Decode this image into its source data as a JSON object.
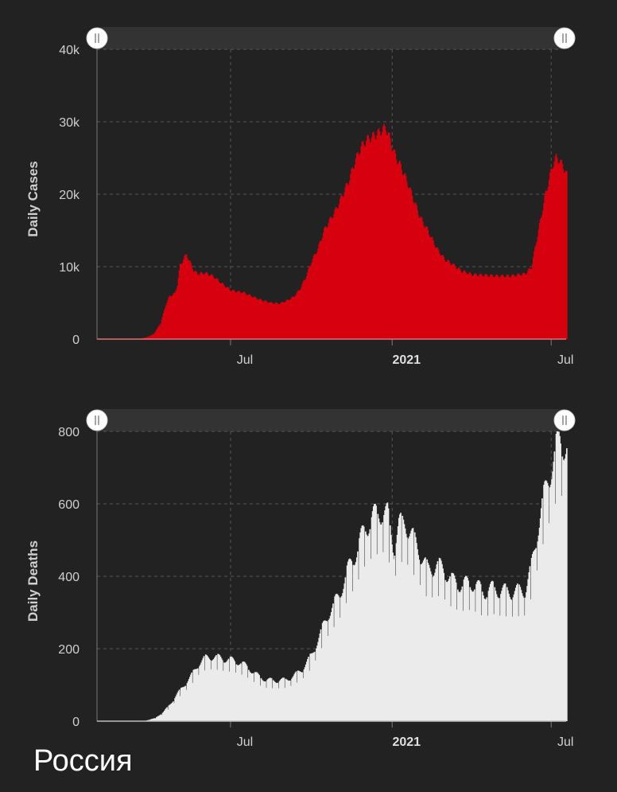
{
  "country": "Россия",
  "chart_data": [
    {
      "id": "cases",
      "type": "bar",
      "ylabel": "Daily Cases",
      "ylim": [
        0,
        40000
      ],
      "yticks": [
        {
          "value": 0,
          "label": "0"
        },
        {
          "value": 10000,
          "label": "10k"
        },
        {
          "value": 20000,
          "label": "20k"
        },
        {
          "value": 30000,
          "label": "30k"
        },
        {
          "value": 40000,
          "label": "40k"
        }
      ],
      "xlim": [
        "2020-01-31",
        "2021-07-18"
      ],
      "xticks": [
        {
          "date": "2020-07-01",
          "label": "Jul",
          "bold": false
        },
        {
          "date": "2021-01-01",
          "label": "2021",
          "bold": true
        },
        {
          "date": "2021-07-01",
          "label": "Jul",
          "bold": false
        }
      ],
      "grid": true,
      "color": "#d6000f",
      "keypoints": [
        [
          "2020-01-31",
          0
        ],
        [
          "2020-03-08",
          10
        ],
        [
          "2020-03-20",
          60
        ],
        [
          "2020-03-28",
          300
        ],
        [
          "2020-04-04",
          700
        ],
        [
          "2020-04-12",
          2200
        ],
        [
          "2020-04-18",
          4800
        ],
        [
          "2020-04-22",
          5900
        ],
        [
          "2020-04-28",
          6300
        ],
        [
          "2020-05-01",
          7500
        ],
        [
          "2020-05-04",
          10200
        ],
        [
          "2020-05-08",
          11000
        ],
        [
          "2020-05-11",
          11700
        ],
        [
          "2020-05-15",
          10600
        ],
        [
          "2020-05-20",
          9300
        ],
        [
          "2020-05-25",
          9000
        ],
        [
          "2020-06-01",
          9100
        ],
        [
          "2020-06-10",
          8700
        ],
        [
          "2020-06-20",
          7700
        ],
        [
          "2020-07-01",
          6700
        ],
        [
          "2020-07-15",
          6400
        ],
        [
          "2020-08-01",
          5500
        ],
        [
          "2020-08-15",
          5000
        ],
        [
          "2020-08-25",
          4900
        ],
        [
          "2020-09-01",
          5200
        ],
        [
          "2020-09-10",
          5800
        ],
        [
          "2020-09-17",
          6800
        ],
        [
          "2020-09-24",
          8500
        ],
        [
          "2020-10-01",
          10800
        ],
        [
          "2020-10-08",
          12500
        ],
        [
          "2020-10-15",
          15000
        ],
        [
          "2020-10-22",
          16500
        ],
        [
          "2020-10-29",
          18000
        ],
        [
          "2020-11-05",
          19900
        ],
        [
          "2020-11-12",
          21800
        ],
        [
          "2020-11-19",
          24500
        ],
        [
          "2020-11-26",
          26500
        ],
        [
          "2020-12-03",
          27500
        ],
        [
          "2020-12-10",
          28000
        ],
        [
          "2020-12-17",
          28500
        ],
        [
          "2020-12-24",
          29200
        ],
        [
          "2020-12-28",
          27800
        ],
        [
          "2021-01-03",
          25500
        ],
        [
          "2021-01-10",
          23800
        ],
        [
          "2021-01-18",
          21500
        ],
        [
          "2021-01-25",
          19100
        ],
        [
          "2021-02-01",
          16800
        ],
        [
          "2021-02-10",
          14900
        ],
        [
          "2021-02-20",
          12500
        ],
        [
          "2021-03-01",
          11000
        ],
        [
          "2021-03-10",
          10300
        ],
        [
          "2021-03-20",
          9400
        ],
        [
          "2021-04-01",
          8900
        ],
        [
          "2021-04-15",
          8800
        ],
        [
          "2021-05-01",
          8700
        ],
        [
          "2021-05-15",
          8700
        ],
        [
          "2021-06-01",
          9000
        ],
        [
          "2021-06-08",
          9900
        ],
        [
          "2021-06-12",
          12500
        ],
        [
          "2021-06-16",
          15000
        ],
        [
          "2021-06-20",
          17500
        ],
        [
          "2021-06-24",
          20000
        ],
        [
          "2021-06-28",
          22000
        ],
        [
          "2021-07-02",
          24000
        ],
        [
          "2021-07-06",
          25000
        ],
        [
          "2021-07-10",
          24500
        ],
        [
          "2021-07-14",
          23800
        ],
        [
          "2021-07-18",
          22600
        ]
      ]
    },
    {
      "id": "deaths",
      "type": "bar",
      "ylabel": "Daily Deaths",
      "ylim": [
        0,
        800
      ],
      "yticks": [
        {
          "value": 0,
          "label": "0"
        },
        {
          "value": 200,
          "label": "200"
        },
        {
          "value": 400,
          "label": "400"
        },
        {
          "value": 600,
          "label": "600"
        },
        {
          "value": 800,
          "label": "800"
        }
      ],
      "xlim": [
        "2020-01-31",
        "2021-07-18"
      ],
      "xticks": [
        {
          "date": "2020-07-01",
          "label": "Jul",
          "bold": false
        },
        {
          "date": "2021-01-01",
          "label": "2021",
          "bold": true
        },
        {
          "date": "2021-07-01",
          "label": "Jul",
          "bold": false
        }
      ],
      "grid": true,
      "color": "#ebebeb",
      "keypoints": [
        [
          "2020-01-31",
          0
        ],
        [
          "2020-03-25",
          1
        ],
        [
          "2020-04-05",
          8
        ],
        [
          "2020-04-15",
          25
        ],
        [
          "2020-04-25",
          55
        ],
        [
          "2020-05-05",
          90
        ],
        [
          "2020-05-15",
          120
        ],
        [
          "2020-05-25",
          160
        ],
        [
          "2020-06-01",
          175
        ],
        [
          "2020-06-10",
          180
        ],
        [
          "2020-06-20",
          175
        ],
        [
          "2020-07-01",
          170
        ],
        [
          "2020-07-10",
          165
        ],
        [
          "2020-07-20",
          150
        ],
        [
          "2020-08-01",
          125
        ],
        [
          "2020-08-10",
          115
        ],
        [
          "2020-08-20",
          113
        ],
        [
          "2020-09-01",
          115
        ],
        [
          "2020-09-10",
          125
        ],
        [
          "2020-09-20",
          145
        ],
        [
          "2020-10-01",
          185
        ],
        [
          "2020-10-10",
          240
        ],
        [
          "2020-10-20",
          300
        ],
        [
          "2020-11-01",
          350
        ],
        [
          "2020-11-10",
          415
        ],
        [
          "2020-11-20",
          470
        ],
        [
          "2020-12-01",
          540
        ],
        [
          "2020-12-10",
          570
        ],
        [
          "2020-12-20",
          585
        ],
        [
          "2020-12-26",
          575
        ],
        [
          "2021-01-02",
          480
        ],
        [
          "2021-01-08",
          545
        ],
        [
          "2021-01-15",
          555
        ],
        [
          "2021-01-22",
          520
        ],
        [
          "2021-02-01",
          470
        ],
        [
          "2021-02-10",
          420
        ],
        [
          "2021-02-20",
          435
        ],
        [
          "2021-03-01",
          420
        ],
        [
          "2021-03-10",
          390
        ],
        [
          "2021-03-20",
          380
        ],
        [
          "2021-04-01",
          385
        ],
        [
          "2021-04-15",
          360
        ],
        [
          "2021-04-25",
          370
        ],
        [
          "2021-05-01",
          365
        ],
        [
          "2021-05-15",
          360
        ],
        [
          "2021-06-01",
          365
        ],
        [
          "2021-06-08",
          430
        ],
        [
          "2021-06-14",
          520
        ],
        [
          "2021-06-20",
          600
        ],
        [
          "2021-06-26",
          665
        ],
        [
          "2021-07-02",
          720
        ],
        [
          "2021-07-06",
          760
        ],
        [
          "2021-07-10",
          780
        ],
        [
          "2021-07-14",
          775
        ],
        [
          "2021-07-18",
          765
        ]
      ]
    }
  ]
}
